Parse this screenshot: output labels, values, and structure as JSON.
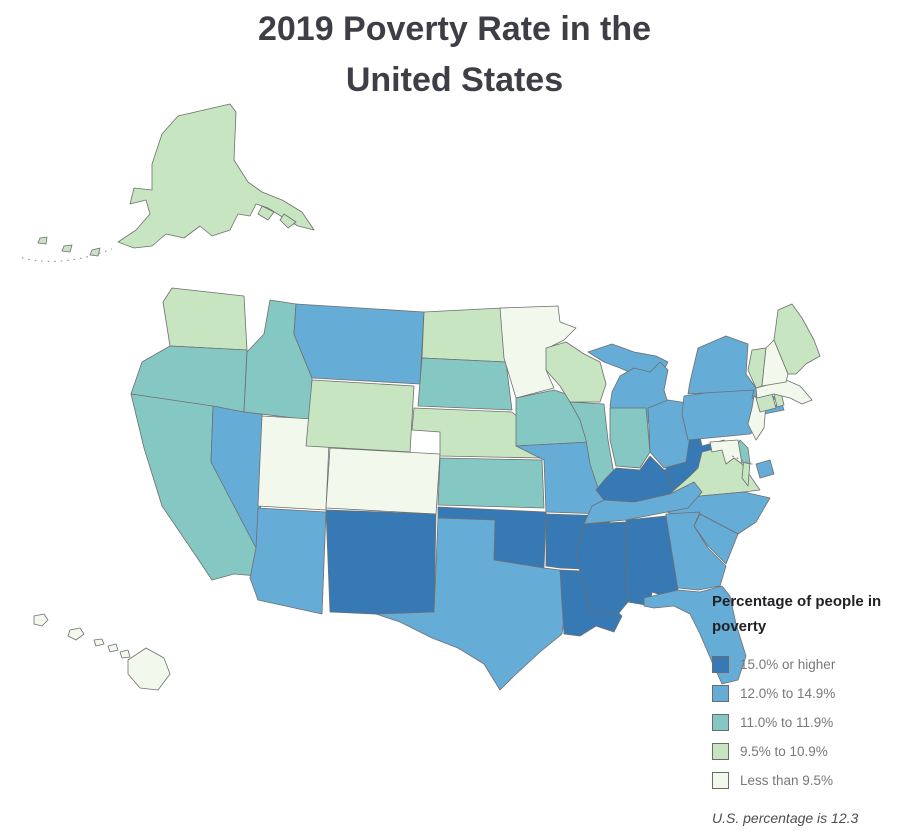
{
  "title": {
    "line1": "2019 Poverty Rate in the",
    "line2": "United States"
  },
  "legend": {
    "title_line1": "Percentage of people in",
    "title_line2": "poverty",
    "items": [
      {
        "label": "15.0% or higher",
        "color": "#3679b5"
      },
      {
        "label": "12.0% to 14.9%",
        "color": "#65acd7"
      },
      {
        "label": "11.0% to 11.9%",
        "color": "#85c8c3"
      },
      {
        "label": "9.5% to 10.9%",
        "color": "#c6e5c0"
      },
      {
        "label": "Less than 9.5%",
        "color": "#f2f9ec"
      }
    ],
    "footnote": "U.S. percentage is 12.3"
  },
  "colors": {
    "state_border": "#6f6f6f",
    "title_text": "#3e3e47",
    "legend_label_text": "#787878",
    "background": "#ffffff"
  },
  "chart_data": {
    "type": "choropleth-map",
    "region": "United States (50 states + DC, Alaska and Hawaii insets)",
    "title": "2019 Poverty Rate in the United States",
    "legend_title": "Percentage of people in poverty",
    "legend_position": "bottom-right",
    "us_percentage": 12.3,
    "categories": [
      "15.0% or higher",
      "12.0% to 14.9%",
      "11.0% to 11.9%",
      "9.5% to 10.9%",
      "Less than 9.5%"
    ],
    "states": [
      {
        "abbr": "AL",
        "name": "Alabama",
        "category": "15.0% or higher"
      },
      {
        "abbr": "AK",
        "name": "Alaska",
        "category": "9.5% to 10.9%"
      },
      {
        "abbr": "AZ",
        "name": "Arizona",
        "category": "12.0% to 14.9%"
      },
      {
        "abbr": "AR",
        "name": "Arkansas",
        "category": "15.0% or higher"
      },
      {
        "abbr": "CA",
        "name": "California",
        "category": "11.0% to 11.9%"
      },
      {
        "abbr": "CO",
        "name": "Colorado",
        "category": "Less than 9.5%"
      },
      {
        "abbr": "CT",
        "name": "Connecticut",
        "category": "9.5% to 10.9%"
      },
      {
        "abbr": "DE",
        "name": "Delaware",
        "category": "11.0% to 11.9%"
      },
      {
        "abbr": "DC",
        "name": "District of Columbia",
        "category": "12.0% to 14.9%"
      },
      {
        "abbr": "FL",
        "name": "Florida",
        "category": "12.0% to 14.9%"
      },
      {
        "abbr": "GA",
        "name": "Georgia",
        "category": "12.0% to 14.9%"
      },
      {
        "abbr": "HI",
        "name": "Hawaii",
        "category": "Less than 9.5%"
      },
      {
        "abbr": "ID",
        "name": "Idaho",
        "category": "11.0% to 11.9%"
      },
      {
        "abbr": "IL",
        "name": "Illinois",
        "category": "11.0% to 11.9%"
      },
      {
        "abbr": "IN",
        "name": "Indiana",
        "category": "11.0% to 11.9%"
      },
      {
        "abbr": "IA",
        "name": "Iowa",
        "category": "11.0% to 11.9%"
      },
      {
        "abbr": "KS",
        "name": "Kansas",
        "category": "11.0% to 11.9%"
      },
      {
        "abbr": "KY",
        "name": "Kentucky",
        "category": "15.0% or higher"
      },
      {
        "abbr": "LA",
        "name": "Louisiana",
        "category": "15.0% or higher"
      },
      {
        "abbr": "ME",
        "name": "Maine",
        "category": "9.5% to 10.9%"
      },
      {
        "abbr": "MD",
        "name": "Maryland",
        "category": "Less than 9.5%"
      },
      {
        "abbr": "MA",
        "name": "Massachusetts",
        "category": "Less than 9.5%"
      },
      {
        "abbr": "MI",
        "name": "Michigan",
        "category": "12.0% to 14.9%"
      },
      {
        "abbr": "MN",
        "name": "Minnesota",
        "category": "Less than 9.5%"
      },
      {
        "abbr": "MS",
        "name": "Mississippi",
        "category": "15.0% or higher"
      },
      {
        "abbr": "MO",
        "name": "Missouri",
        "category": "12.0% to 14.9%"
      },
      {
        "abbr": "MT",
        "name": "Montana",
        "category": "12.0% to 14.9%"
      },
      {
        "abbr": "NE",
        "name": "Nebraska",
        "category": "9.5% to 10.9%"
      },
      {
        "abbr": "NV",
        "name": "Nevada",
        "category": "12.0% to 14.9%"
      },
      {
        "abbr": "NH",
        "name": "New Hampshire",
        "category": "Less than 9.5%"
      },
      {
        "abbr": "NJ",
        "name": "New Jersey",
        "category": "Less than 9.5%"
      },
      {
        "abbr": "NM",
        "name": "New Mexico",
        "category": "15.0% or higher"
      },
      {
        "abbr": "NY",
        "name": "New York",
        "category": "12.0% to 14.9%"
      },
      {
        "abbr": "NC",
        "name": "North Carolina",
        "category": "12.0% to 14.9%"
      },
      {
        "abbr": "ND",
        "name": "North Dakota",
        "category": "9.5% to 10.9%"
      },
      {
        "abbr": "OH",
        "name": "Ohio",
        "category": "12.0% to 14.9%"
      },
      {
        "abbr": "OK",
        "name": "Oklahoma",
        "category": "15.0% or higher"
      },
      {
        "abbr": "OR",
        "name": "Oregon",
        "category": "11.0% to 11.9%"
      },
      {
        "abbr": "PA",
        "name": "Pennsylvania",
        "category": "12.0% to 14.9%"
      },
      {
        "abbr": "RI",
        "name": "Rhode Island",
        "category": "9.5% to 10.9%"
      },
      {
        "abbr": "SC",
        "name": "South Carolina",
        "category": "12.0% to 14.9%"
      },
      {
        "abbr": "SD",
        "name": "South Dakota",
        "category": "11.0% to 11.9%"
      },
      {
        "abbr": "TN",
        "name": "Tennessee",
        "category": "12.0% to 14.9%"
      },
      {
        "abbr": "TX",
        "name": "Texas",
        "category": "12.0% to 14.9%"
      },
      {
        "abbr": "UT",
        "name": "Utah",
        "category": "Less than 9.5%"
      },
      {
        "abbr": "VT",
        "name": "Vermont",
        "category": "9.5% to 10.9%"
      },
      {
        "abbr": "VA",
        "name": "Virginia",
        "category": "9.5% to 10.9%"
      },
      {
        "abbr": "WA",
        "name": "Washington",
        "category": "9.5% to 10.9%"
      },
      {
        "abbr": "WV",
        "name": "West Virginia",
        "category": "15.0% or higher"
      },
      {
        "abbr": "WI",
        "name": "Wisconsin",
        "category": "9.5% to 10.9%"
      },
      {
        "abbr": "WY",
        "name": "Wyoming",
        "category": "9.5% to 10.9%"
      }
    ]
  }
}
